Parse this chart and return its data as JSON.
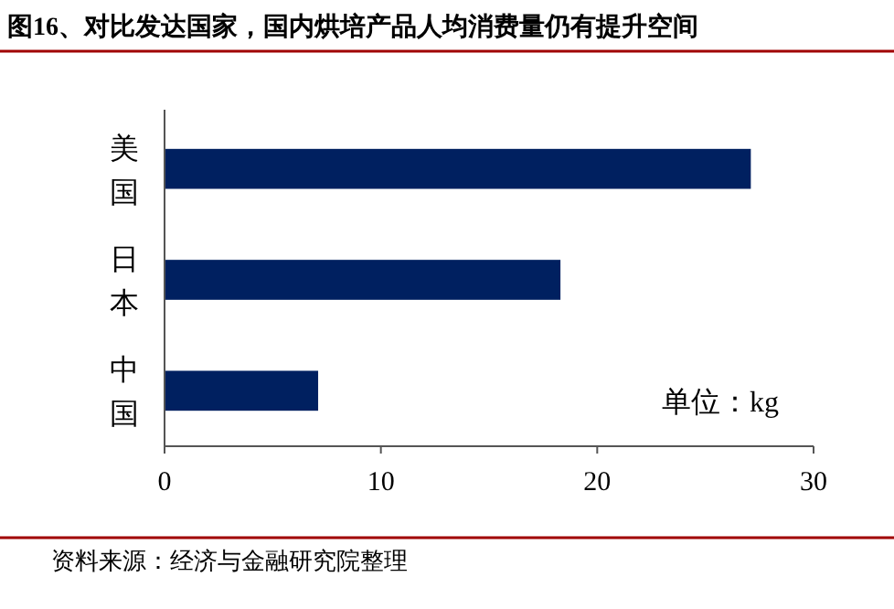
{
  "chart_data": {
    "type": "bar",
    "orientation": "horizontal",
    "title": "图16、对比发达国家，国内烘培产品人均消费量仍有提升空间",
    "categories": [
      "美国",
      "日本",
      "中国"
    ],
    "values": [
      27.1,
      18.3,
      7.1
    ],
    "color": "#002060",
    "xlim": [
      0,
      30
    ],
    "xticks": [
      0,
      10,
      20,
      30
    ],
    "annotations": [
      "单位：kg",
      "资料来源：经济与金融研究院整理"
    ]
  }
}
